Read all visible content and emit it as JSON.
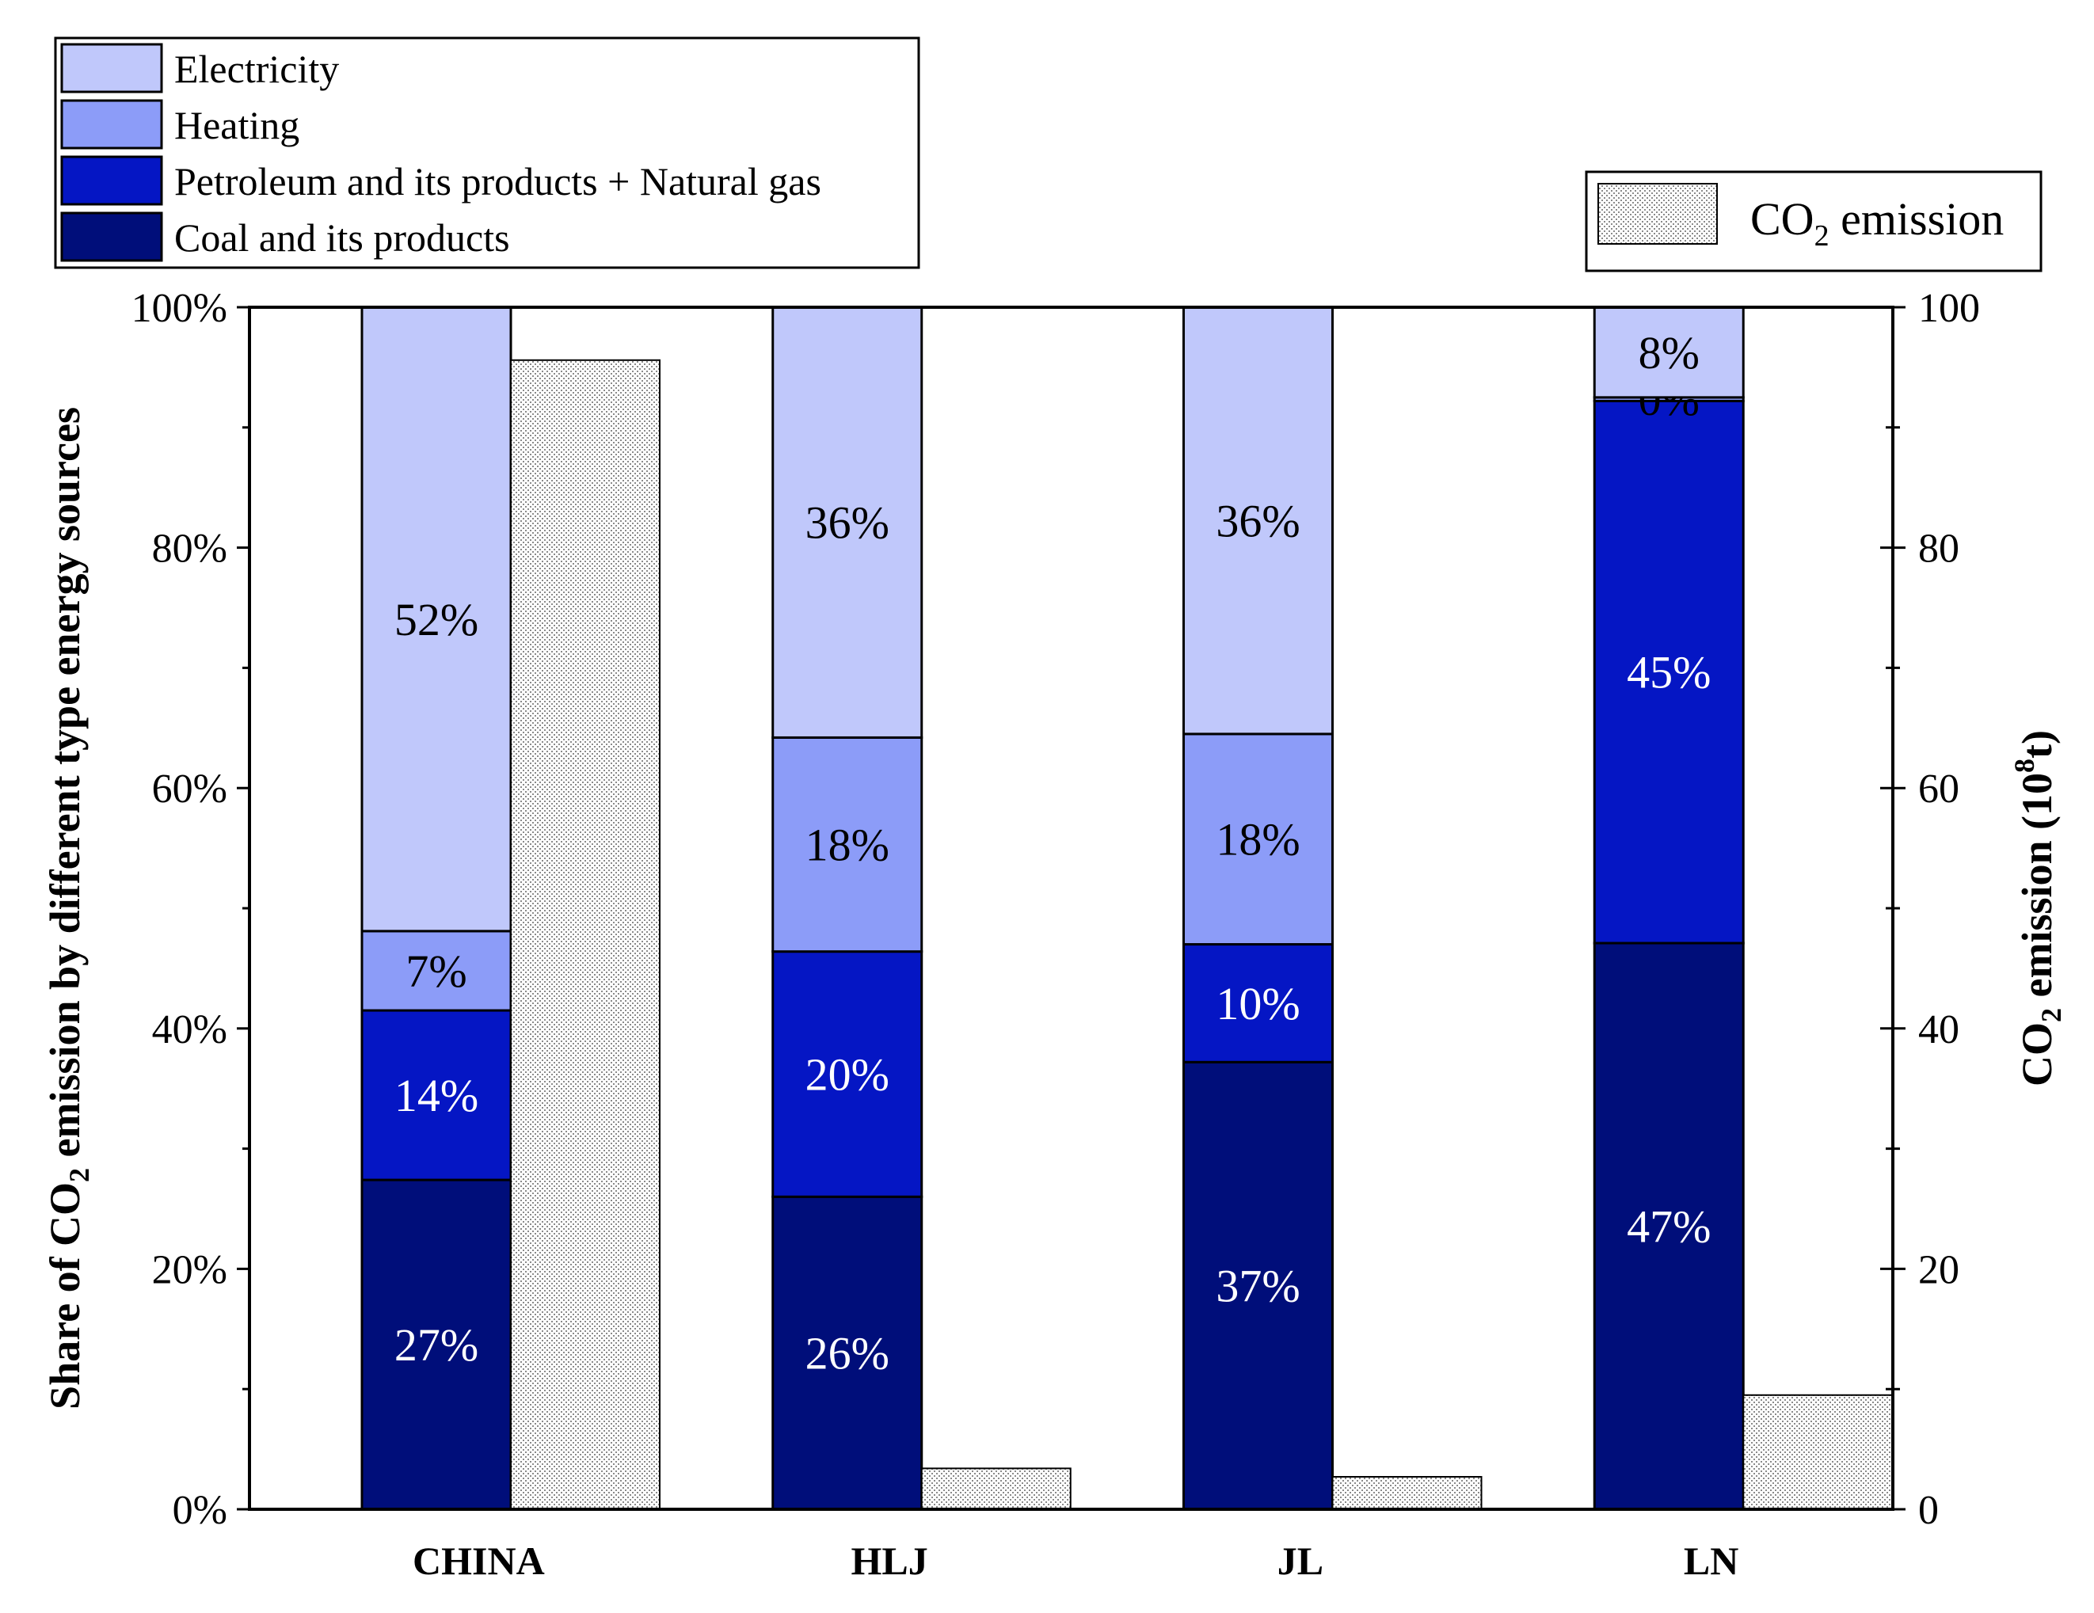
{
  "chart_data": {
    "type": "bar",
    "subtype": "stacked-percent-with-secondary-bars",
    "categories": [
      "CHINA",
      "HLJ",
      "JL",
      "LN"
    ],
    "series": [
      {
        "name": "Coal and its products",
        "color": "#000e7a",
        "values": [
          27.4,
          26.0,
          37.2,
          47.1
        ],
        "labels": [
          "27%",
          "26%",
          "37%",
          "47%"
        ]
      },
      {
        "name": "Petroleum and its products + Natural gas",
        "color": "#0516c4",
        "values": [
          14.1,
          20.4,
          9.8,
          45.1
        ],
        "labels": [
          "14%",
          "20%",
          "10%",
          "45%"
        ]
      },
      {
        "name": "Heating",
        "color": "#8c9cf8",
        "values": [
          6.6,
          17.8,
          17.5,
          0.3
        ],
        "labels": [
          "7%",
          "18%",
          "18%",
          "0%"
        ]
      },
      {
        "name": "Electricity",
        "color": "#c0c8fb",
        "values": [
          51.9,
          35.8,
          35.5,
          7.5
        ],
        "labels": [
          "52%",
          "36%",
          "36%",
          "8%"
        ]
      }
    ],
    "secondary_series": {
      "name": "CO2 emission",
      "legend_label": {
        "main": "CO",
        "sub": "2",
        "rest": " emission"
      },
      "values": [
        95.6,
        3.4,
        2.7,
        9.5
      ],
      "pattern_color": "#8a8a8a"
    },
    "ylabel_left": {
      "main": "Share of CO",
      "sub": "2",
      "rest": " emission by different type energy sources"
    },
    "ylabel_right": {
      "main": "CO",
      "sub": "2",
      "mid": " emission (10",
      "sup": "8",
      "rest": "t)"
    },
    "ylim_left": [
      0,
      100
    ],
    "ylim_right": [
      0,
      100
    ],
    "left_ticks": [
      "0%",
      "20%",
      "40%",
      "60%",
      "80%",
      "100%"
    ],
    "right_ticks": [
      "0",
      "20",
      "40",
      "60",
      "80",
      "100"
    ],
    "legend_position": "top-left",
    "secondary_legend_position": "top-right",
    "grid": false
  }
}
